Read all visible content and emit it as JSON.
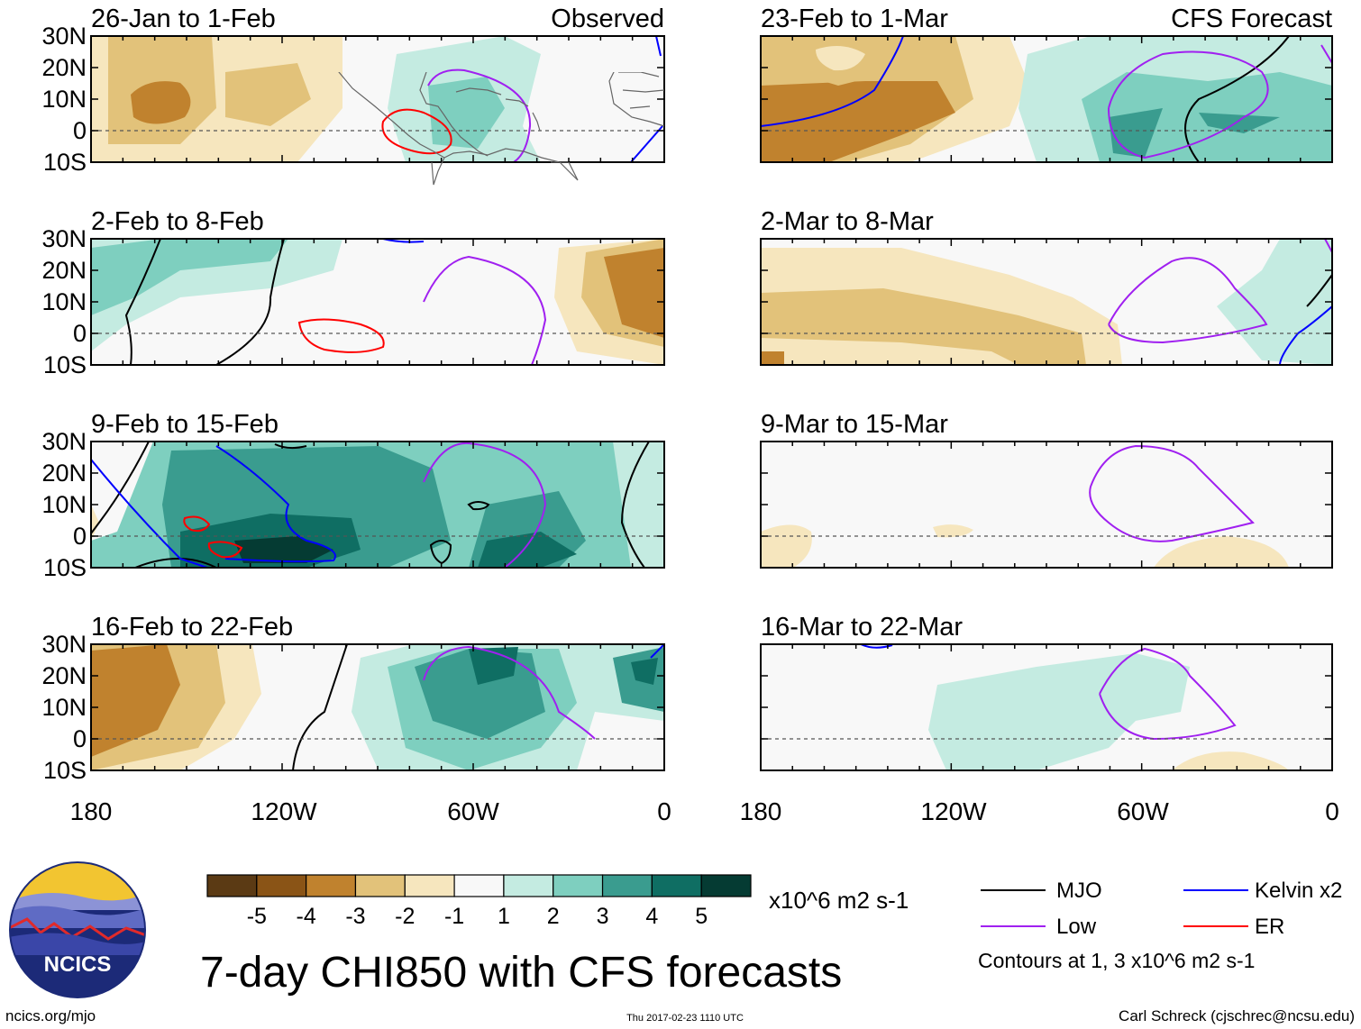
{
  "panels_left": [
    {
      "title": "26-Jan to 1-Feb",
      "tag": "Observed"
    },
    {
      "title": "2-Feb to 8-Feb",
      "tag": ""
    },
    {
      "title": "9-Feb to 15-Feb",
      "tag": ""
    },
    {
      "title": "16-Feb to 22-Feb",
      "tag": ""
    }
  ],
  "panels_right": [
    {
      "title": "23-Feb to 1-Mar",
      "tag": "CFS Forecast"
    },
    {
      "title": "2-Mar to 8-Mar",
      "tag": ""
    },
    {
      "title": "9-Mar to 15-Mar",
      "tag": ""
    },
    {
      "title": "16-Mar to 22-Mar",
      "tag": ""
    }
  ],
  "lat_labels": [
    "30N",
    "20N",
    "10N",
    "0",
    "10S"
  ],
  "lon_labels": [
    "180",
    "120W",
    "60W",
    "0"
  ],
  "colorbar": {
    "colors": [
      "#5b3a14",
      "#8a5416",
      "#c0822e",
      "#e2c27a",
      "#f6e6be",
      "#f8f8f8",
      "#c4ebe1",
      "#7ecfbf",
      "#3a9c8f",
      "#0f6e63",
      "#053b33"
    ],
    "labels": [
      "-5",
      "-4",
      "-3",
      "-2",
      "-1",
      "1",
      "2",
      "3",
      "4",
      "5"
    ],
    "units": "x10^6 m2 s-1"
  },
  "legend": {
    "items": [
      {
        "label": "MJO",
        "color": "#000000"
      },
      {
        "label": "Kelvin x2",
        "color": "#0000ff"
      },
      {
        "label": "Low",
        "color": "#a020f0"
      },
      {
        "label": "ER",
        "color": "#ff0000"
      }
    ],
    "note": "Contours at 1, 3 x10^6 m2 s-1"
  },
  "logo": {
    "text": "NCICS"
  },
  "main_title": "7-day CHI850 with CFS forecasts",
  "footer": {
    "site": "ncics.org/mjo",
    "timestamp": "Thu 2017-02-23 1110 UTC",
    "author": "Carl Schreck (cjschrec@ncsu.edu)"
  },
  "colors": {
    "land_outline": "#666666",
    "ocean": "#f8f8f8"
  }
}
